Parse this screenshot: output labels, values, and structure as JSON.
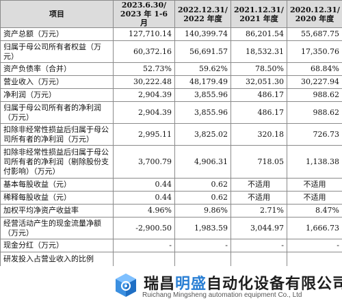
{
  "table": {
    "headers": [
      {
        "line1": "项目",
        "line2": ""
      },
      {
        "line1": "2023.6.30/",
        "line2": "2023 年 1-6 月"
      },
      {
        "line1": "2022.12.31/",
        "line2": "2022 年度"
      },
      {
        "line1": "2021.12.31/",
        "line2": "2021 年度"
      },
      {
        "line1": "2020.12.31/",
        "line2": "2020 年度"
      }
    ],
    "rows": [
      {
        "label": "资产总额（万元）",
        "v": [
          "127,710.14",
          "140,399.74",
          "86,201.54",
          "55,687.75"
        ]
      },
      {
        "label": "归属于母公司所有者权益（万元）",
        "v": [
          "60,372.16",
          "56,691.57",
          "18,532.31",
          "17,350.76"
        ]
      },
      {
        "label": "资产负债率（合并）",
        "v": [
          "52.73%",
          "59.62%",
          "78.50%",
          "68.84%"
        ]
      },
      {
        "label": "营业收入（万元）",
        "v": [
          "30,222.48",
          "48,179.49",
          "32,051.30",
          "30,227.94"
        ]
      },
      {
        "label": "净利润（万元）",
        "v": [
          "2,904.39",
          "3,855.96",
          "486.17",
          "988.62"
        ]
      },
      {
        "label": "归属于母公司所有者的净利润（万元）",
        "v": [
          "2,904.39",
          "3,855.96",
          "486.17",
          "988.62"
        ]
      },
      {
        "label": "扣除非经常性损益后归属于母公司所有者的净利润（万元）",
        "v": [
          "2,995.11",
          "3,825.02",
          "320.18",
          "726.73"
        ]
      },
      {
        "label": "扣除非经常性损益后归属于母公司所有者的净利润（剔除股份支付影响）（万元）",
        "v": [
          "3,700.79",
          "4,906.31",
          "718.05",
          "1,138.38"
        ]
      },
      {
        "label": "基本每股收益（元）",
        "v": [
          "0.44",
          "0.62",
          "不适用",
          "不适用"
        ]
      },
      {
        "label": "稀释每股收益（元）",
        "v": [
          "0.44",
          "0.62",
          "不适用",
          "不适用"
        ]
      },
      {
        "label": "加权平均净资产收益率",
        "v": [
          "4.96%",
          "9.86%",
          "2.71%",
          "8.47%"
        ]
      },
      {
        "label": "经营活动产生的现金流量净额（万元）",
        "v": [
          "-2,900.50",
          "1,983.59",
          "3,044.97",
          "1,666.73"
        ]
      },
      {
        "label": "现金分红（万元）",
        "v": [
          "-",
          "-",
          "-",
          "-"
        ]
      },
      {
        "label": "研发投入占营业收入的比例",
        "v": [
          "",
          "",
          "",
          ""
        ]
      }
    ]
  },
  "watermark": {
    "cn_prefix": "瑞昌",
    "cn_highlight": "明盛",
    "cn_suffix": "自动化设备有限公司",
    "en": "Ruichang Mingsheng automation equipment Co., Ltd",
    "logo_icon": "gear-cube-logo-icon",
    "accent": "#2a7fd4"
  }
}
